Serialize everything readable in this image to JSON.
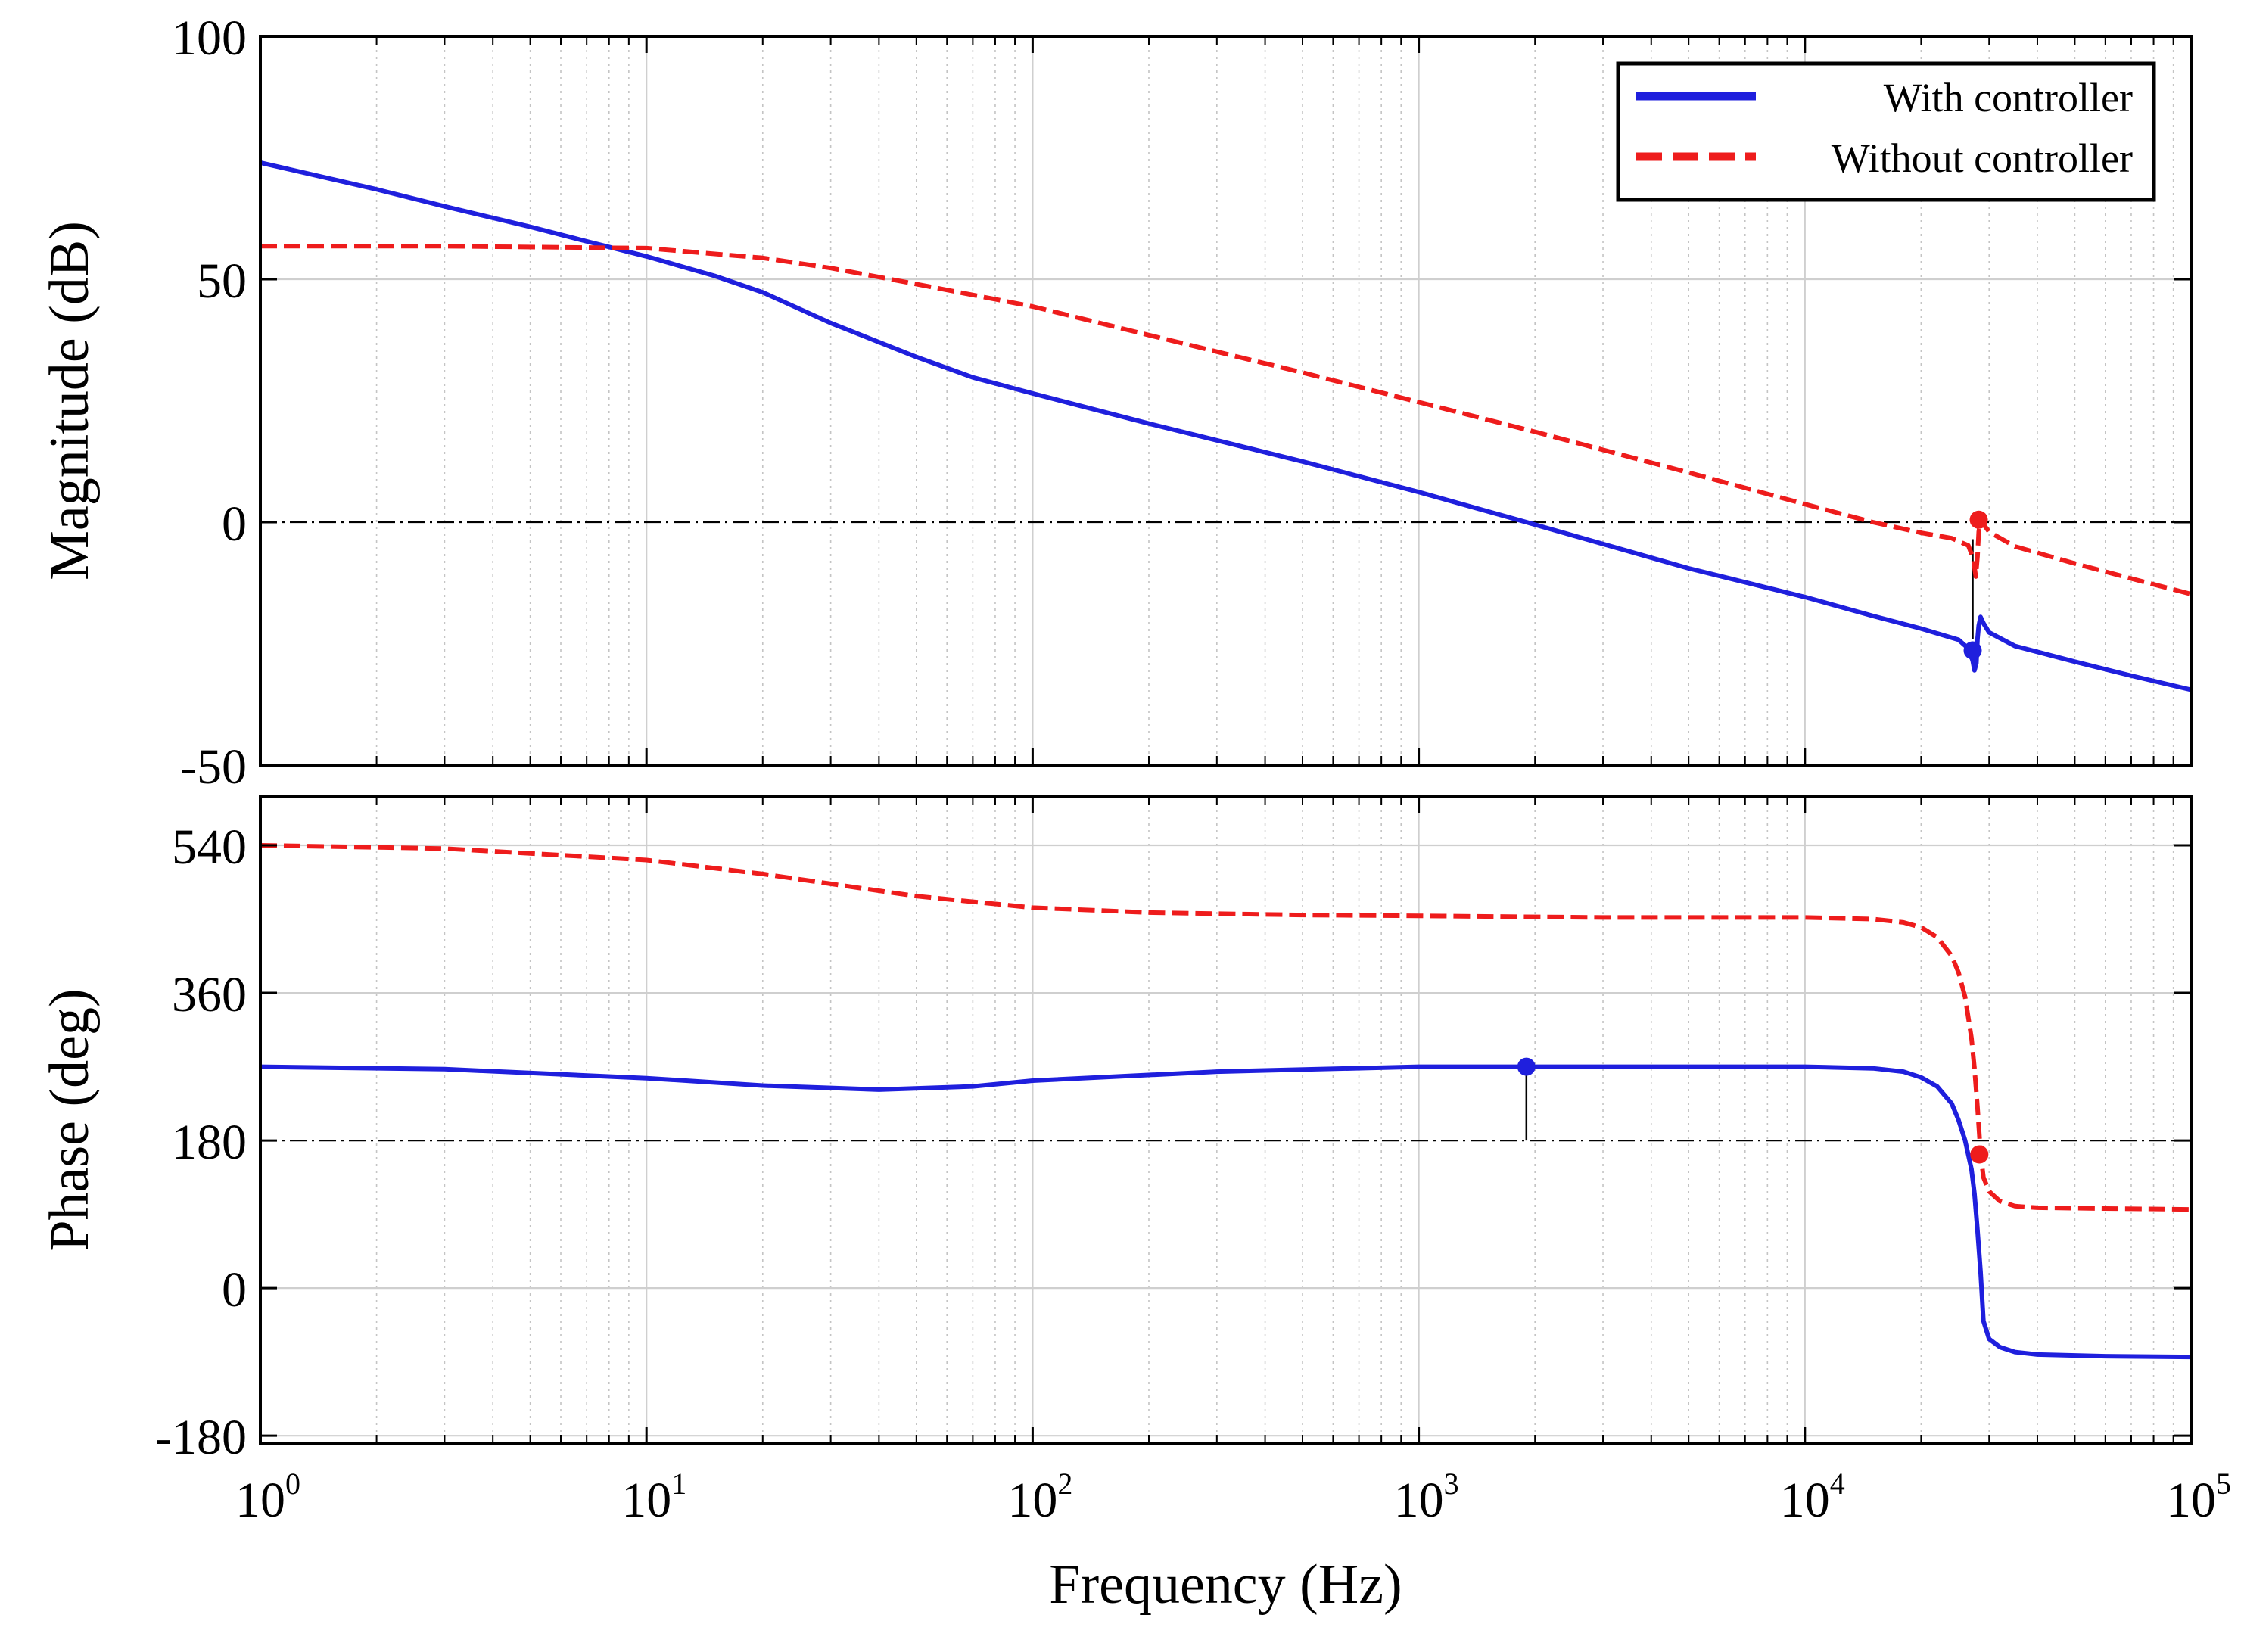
{
  "chart_data": [
    {
      "type": "line",
      "panel": "magnitude",
      "xscale": "log",
      "xlim": [
        1,
        100000
      ],
      "ylim": [
        -50,
        100
      ],
      "yticks": [
        "100",
        "50",
        "0",
        "-50"
      ],
      "ylabel": "Magnitude  (dB)",
      "grid": true,
      "reference_line": {
        "y": 0,
        "style": "dash-dot"
      },
      "series": [
        {
          "name": "With controller",
          "color": "#1f1fdd",
          "style": "solid",
          "x": [
            1,
            2,
            3,
            5,
            7,
            10,
            15,
            20,
            30,
            50,
            70,
            100,
            200,
            500,
            1000,
            1900,
            5000,
            10000,
            15000,
            20000,
            25000,
            26500,
            27200,
            27500,
            27800,
            28000,
            28200,
            28500,
            29000,
            30000,
            35000,
            50000,
            70000,
            100000
          ],
          "y": [
            74,
            68.5,
            65,
            60.8,
            57.8,
            54.7,
            50.7,
            47.3,
            41,
            34,
            29.8,
            26.5,
            20.3,
            12.5,
            6.2,
            0,
            -9.5,
            -15.4,
            -19.3,
            -21.9,
            -24.2,
            -26,
            -28.5,
            -30.5,
            -29,
            -24,
            -21.3,
            -19.5,
            -20.8,
            -22.7,
            -25.5,
            -28.7,
            -31.6,
            -34.5
          ]
        },
        {
          "name": "Without controller",
          "color": "#ee1c1c",
          "style": "dashed",
          "x": [
            1,
            3,
            10,
            20,
            30,
            50,
            100,
            200,
            500,
            1000,
            2000,
            5000,
            10000,
            15000,
            20000,
            24000,
            26500,
            27300,
            27700,
            28000,
            28200,
            28500,
            29000,
            30000,
            35000,
            50000,
            70000,
            100000
          ],
          "y": [
            56.8,
            56.8,
            56.4,
            54.4,
            52.3,
            49,
            44.4,
            38.5,
            30.8,
            24.7,
            18.6,
            10.2,
            3.7,
            0,
            -2.2,
            -3.3,
            -4.8,
            -7.5,
            -11.2,
            -7,
            -2,
            0.5,
            -0.4,
            -2,
            -5,
            -8.5,
            -11.6,
            -14.8
          ]
        }
      ],
      "markers": [
        {
          "series": "Without controller",
          "x": 28200,
          "y": 0.5,
          "color": "#ee1c1c"
        },
        {
          "series": "With controller",
          "x": 27200,
          "y": -26.4,
          "color": "#1f1fdd"
        }
      ],
      "annotation_stems": [
        {
          "x": 27200,
          "y1": -3.5,
          "y2": -24
        }
      ],
      "legend": {
        "position": "top-right",
        "entries": [
          {
            "label": "With controller",
            "color": "#1f1fdd",
            "style": "solid"
          },
          {
            "label": "Without controller",
            "color": "#ee1c1c",
            "style": "dashed"
          }
        ]
      }
    },
    {
      "type": "line",
      "panel": "phase",
      "xscale": "log",
      "xlim": [
        1,
        100000
      ],
      "ylim": [
        -190,
        600
      ],
      "yticks": [
        "540",
        "360",
        "180",
        "0",
        "-180"
      ],
      "ylabel": "Phase (deg)",
      "xlabel": "Frequency (Hz)",
      "xtick_base": "10",
      "xtick_exponents": [
        "0",
        "1",
        "2",
        "3",
        "4",
        "5"
      ],
      "grid": true,
      "reference_line": {
        "y": 180,
        "style": "dash-dot"
      },
      "series": [
        {
          "name": "With controller",
          "color": "#1f1fdd",
          "style": "solid",
          "x": [
            1,
            3,
            10,
            20,
            40,
            70,
            100,
            300,
            1000,
            1900,
            5000,
            10000,
            15000,
            18000,
            20000,
            22000,
            24000,
            25000,
            26000,
            27000,
            27500,
            28000,
            28500,
            29000,
            30000,
            32000,
            35000,
            40000,
            60000,
            100000
          ],
          "y": [
            270,
            267,
            256,
            247,
            242,
            246,
            253,
            264,
            270,
            270,
            270,
            270,
            268,
            264,
            257,
            246,
            225,
            205,
            180,
            145,
            115,
            70,
            20,
            -40,
            -62,
            -72,
            -78,
            -81,
            -83,
            -84
          ]
        },
        {
          "name": "Without controller",
          "color": "#ee1c1c",
          "style": "dashed",
          "x": [
            1,
            3,
            10,
            20,
            30,
            50,
            100,
            200,
            500,
            1000,
            3000,
            10000,
            15000,
            18000,
            20000,
            22000,
            24000,
            25000,
            26000,
            27000,
            27500,
            28000,
            28500,
            29000,
            30000,
            32000,
            35000,
            40000,
            60000,
            100000
          ],
          "y": [
            540,
            536,
            522,
            505,
            493,
            478,
            464,
            458,
            455,
            454,
            452,
            452,
            450,
            446,
            440,
            428,
            405,
            385,
            355,
            305,
            268,
            220,
            165,
            135,
            118,
            106,
            100,
            98,
            97,
            96
          ]
        }
      ],
      "markers": [
        {
          "series": "Without controller",
          "x": 28300,
          "y": 163,
          "color": "#ee1c1c"
        },
        {
          "series": "With controller",
          "x": 1900,
          "y": 270,
          "color": "#1f1fdd"
        }
      ],
      "annotation_stems": [
        {
          "x": 1900,
          "y1": 180,
          "y2": 270
        }
      ]
    }
  ]
}
